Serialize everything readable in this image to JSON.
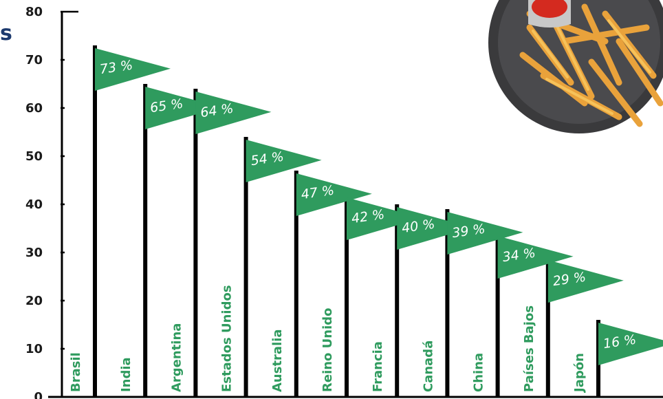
{
  "title_fragment": "s",
  "colors": {
    "flag": "#2f9b5e",
    "pole": "#000000",
    "category_label": "#2f9b5e",
    "title": "#1d3a6e",
    "axis": "#000000"
  },
  "chart_data": {
    "type": "bar",
    "ylim": [
      0,
      80
    ],
    "yticks": [
      0,
      10,
      20,
      30,
      40,
      50,
      60,
      70,
      80
    ],
    "grid": false,
    "legend": "none",
    "categories": [
      "Brasil",
      "India",
      "Argentina",
      "Estados Unidos",
      "Australia",
      "Reino Unido",
      "Francia",
      "Canadá",
      "China",
      "Países Bajos",
      "Japón"
    ],
    "values": [
      73,
      65,
      64,
      54,
      47,
      42,
      40,
      39,
      34,
      29,
      16
    ],
    "data_labels": [
      "73 %",
      "65 %",
      "64 %",
      "54 %",
      "47 %",
      "42 %",
      "40 %",
      "39 %",
      "34 %",
      "29 %",
      "16 %"
    ]
  },
  "decorative_image": "plate-of-crinkle-fries-with-ketchup"
}
